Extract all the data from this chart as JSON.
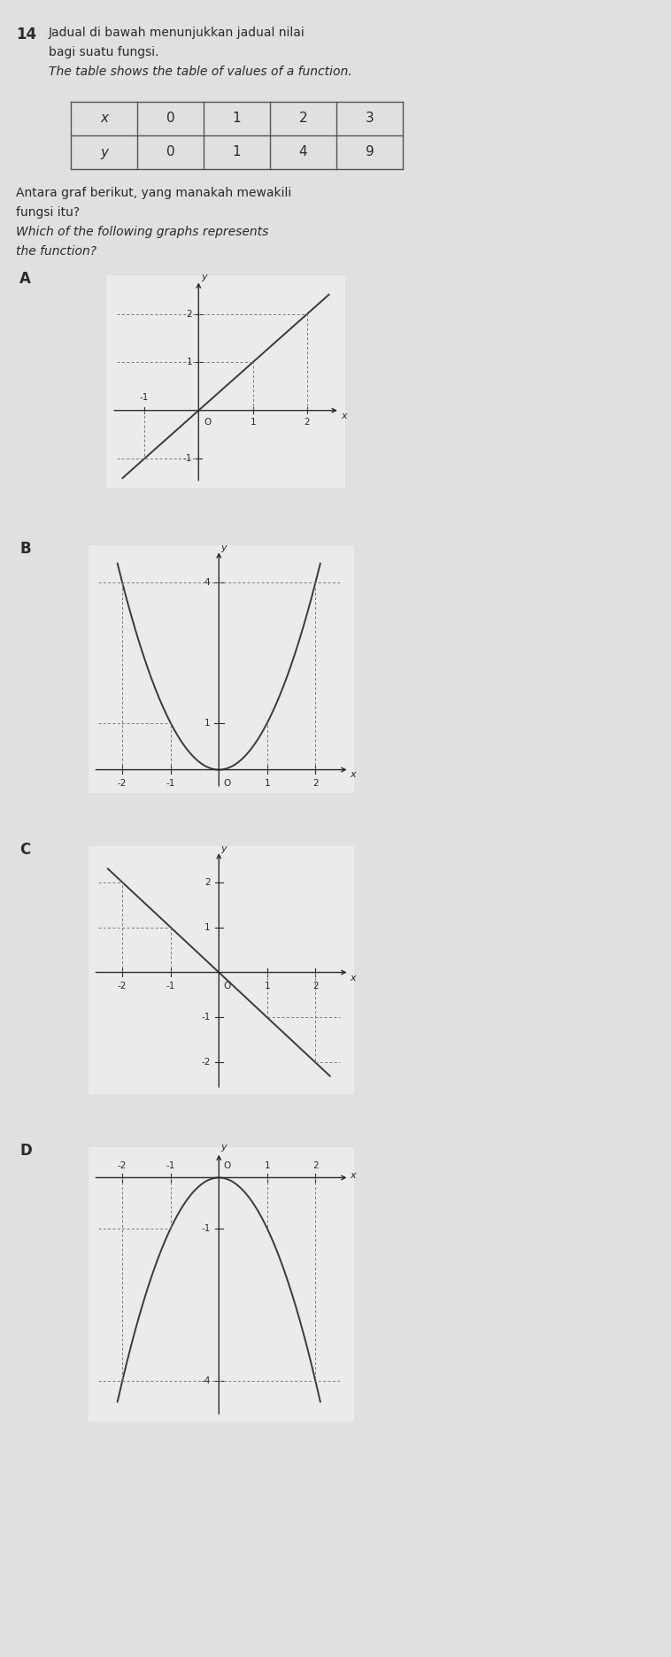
{
  "question_num": "14",
  "malay_line1": "Jadual di bawah menunjukkan jadual nilai",
  "malay_line2": "bagi suatu fungsi.",
  "english_line1": "The table shows the table of values of a function.",
  "table_x_labels": [
    "x",
    "0",
    "1",
    "2",
    "3"
  ],
  "table_y_labels": [
    "y",
    "0",
    "1",
    "4",
    "9"
  ],
  "malay_q1": "Antara graf berikut, yang manakah mewakili",
  "malay_q2": "fungsi itu?",
  "english_q1": "Which of the following graphs represents",
  "english_q2": "the function?",
  "labels": [
    "A",
    "B",
    "C",
    "D"
  ],
  "bg_color": "#e0e0e0",
  "paper_color": "#ebebeb",
  "text_color": "#2a2a2a",
  "graph_color": "#3a3a3a",
  "dash_color": "#777777",
  "axis_color": "#2a2a2a",
  "font_size_text": 10,
  "font_size_label": 12
}
